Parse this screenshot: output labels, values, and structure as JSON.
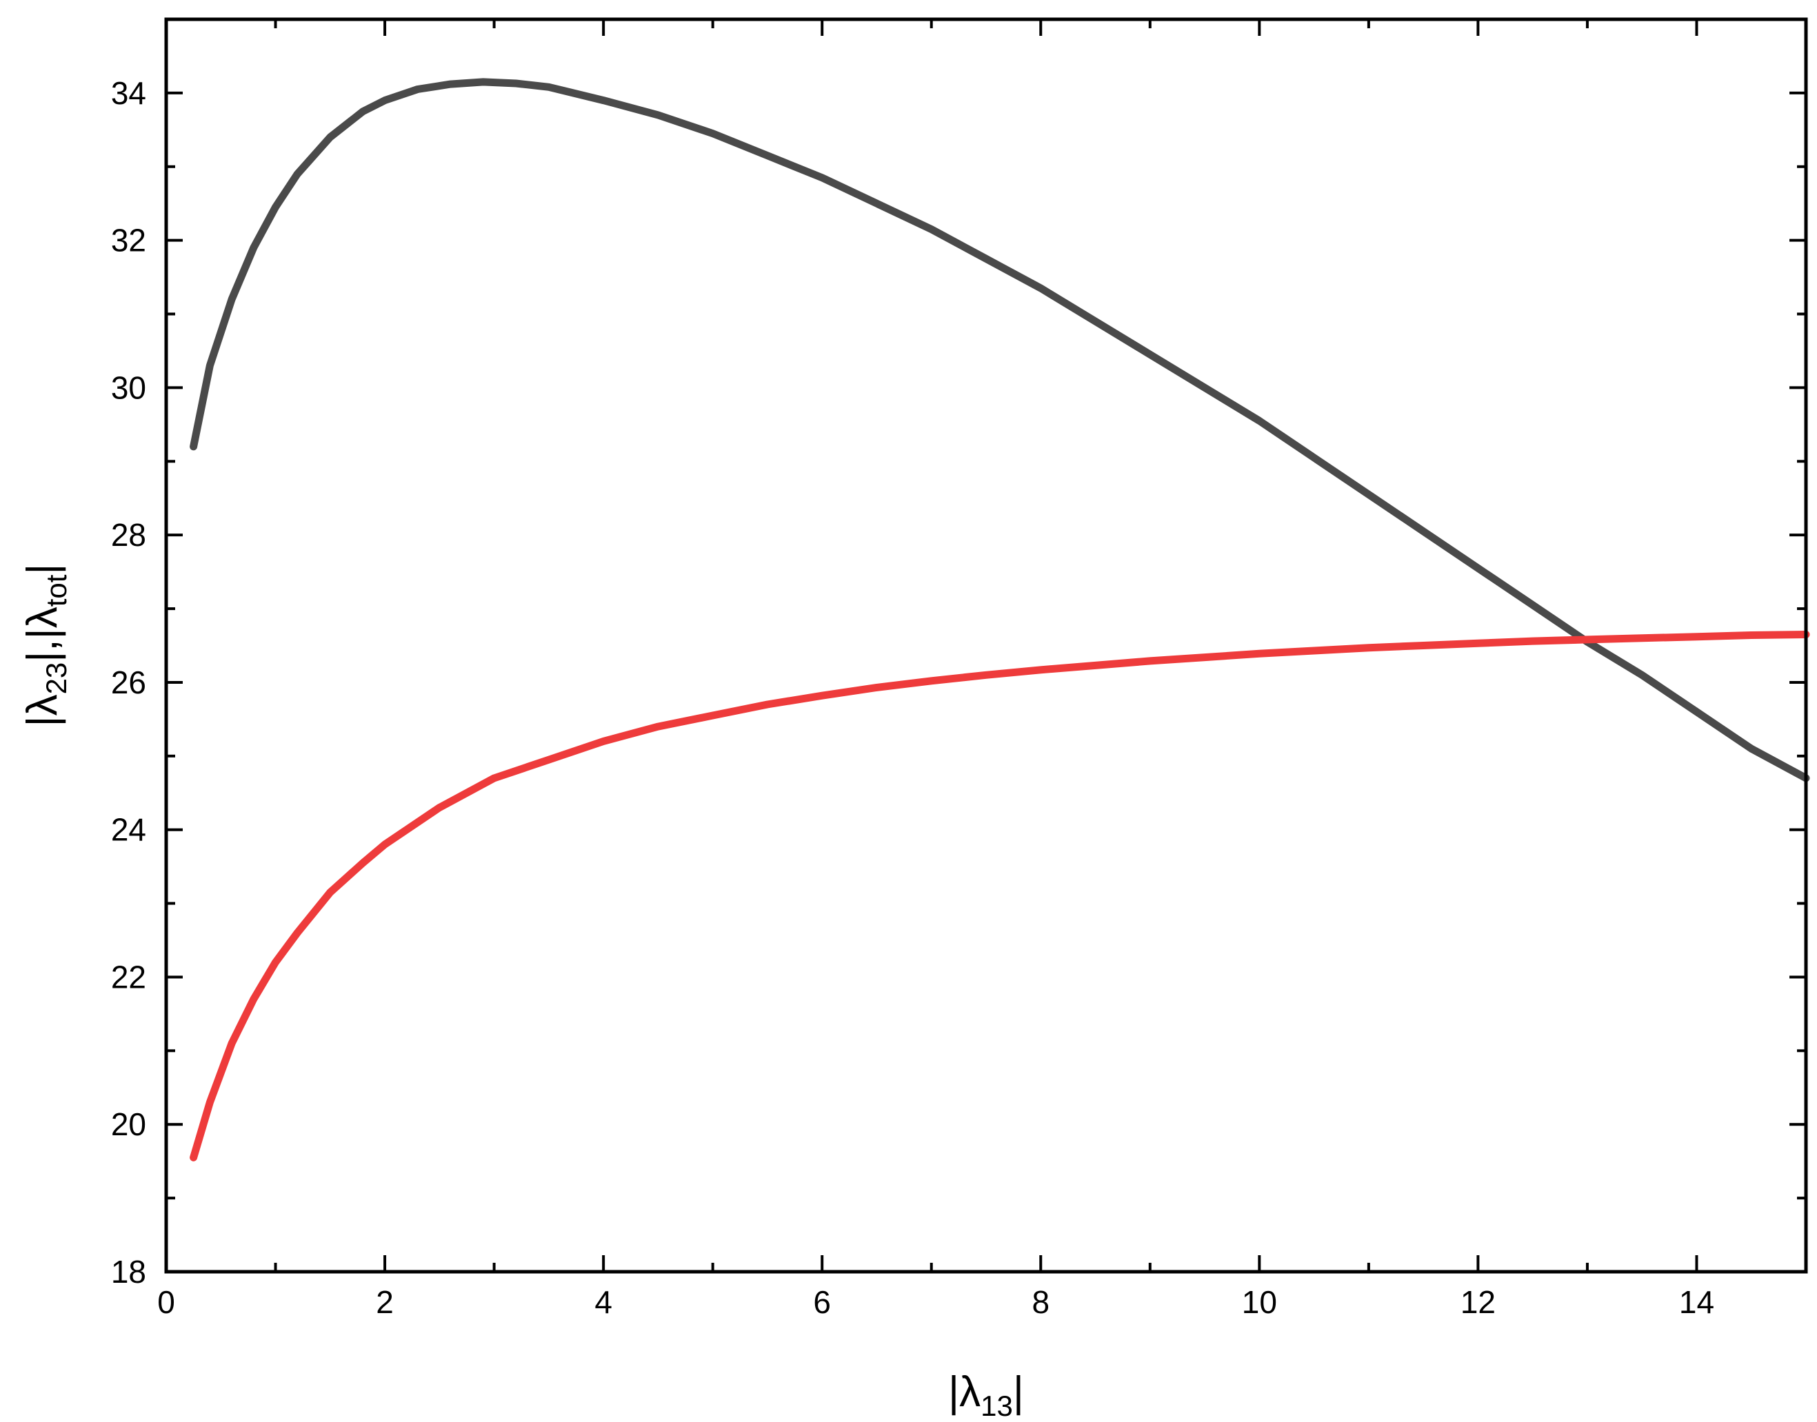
{
  "chart_data": {
    "type": "line",
    "title": "",
    "xlabel": {
      "prefix": "|λ",
      "sub": "13",
      "suffix": "|"
    },
    "ylabel": {
      "part1": "|λ",
      "sub1": "23",
      "part2": "|,|λ",
      "sub2": "tot",
      "part3": "|"
    },
    "xlim": [
      0,
      15
    ],
    "ylim": [
      18,
      35
    ],
    "x_ticks": [
      0,
      2,
      4,
      6,
      8,
      10,
      12,
      14
    ],
    "x_tick_labels": [
      "0",
      "2",
      "4",
      "6",
      "8",
      "10",
      "12",
      "14"
    ],
    "y_ticks": [
      18,
      20,
      22,
      24,
      26,
      28,
      30,
      32,
      34
    ],
    "y_tick_labels": [
      "18",
      "20",
      "22",
      "24",
      "26",
      "28",
      "30",
      "32",
      "34"
    ],
    "grid": false,
    "legend": "none",
    "series": [
      {
        "color": "#4a4a4a",
        "x": [
          0.25,
          0.4,
          0.6,
          0.8,
          1.0,
          1.2,
          1.5,
          1.8,
          2.0,
          2.3,
          2.6,
          2.9,
          3.2,
          3.5,
          4.0,
          4.5,
          5.0,
          5.5,
          6.0,
          6.5,
          7.0,
          7.5,
          8.0,
          8.5,
          9.0,
          9.5,
          10.0,
          10.5,
          11.0,
          11.5,
          12.0,
          12.5,
          13.0,
          13.5,
          14.0,
          14.5,
          15.0
        ],
        "y": [
          29.2,
          30.3,
          31.2,
          31.9,
          32.45,
          32.9,
          33.4,
          33.75,
          33.9,
          34.05,
          34.12,
          34.15,
          34.13,
          34.08,
          33.9,
          33.7,
          33.45,
          33.15,
          32.85,
          32.5,
          32.15,
          31.75,
          31.35,
          30.9,
          30.45,
          30.0,
          29.55,
          29.05,
          28.55,
          28.05,
          27.55,
          27.05,
          26.55,
          26.1,
          25.6,
          25.1,
          24.7
        ]
      },
      {
        "color": "#ee3b3b",
        "x": [
          0.25,
          0.4,
          0.6,
          0.8,
          1.0,
          1.2,
          1.5,
          1.8,
          2.0,
          2.5,
          3.0,
          3.5,
          4.0,
          4.5,
          5.0,
          5.5,
          6.0,
          6.5,
          7.0,
          7.5,
          8.0,
          8.5,
          9.0,
          9.5,
          10.0,
          10.5,
          11.0,
          11.5,
          12.0,
          12.5,
          13.0,
          13.5,
          14.0,
          14.5,
          15.0
        ],
        "y": [
          19.55,
          20.3,
          21.1,
          21.7,
          22.2,
          22.6,
          23.15,
          23.55,
          23.8,
          24.3,
          24.7,
          24.95,
          25.2,
          25.4,
          25.55,
          25.7,
          25.82,
          25.93,
          26.02,
          26.1,
          26.17,
          26.23,
          26.29,
          26.34,
          26.39,
          26.43,
          26.47,
          26.5,
          26.53,
          26.56,
          26.58,
          26.6,
          26.62,
          26.64,
          26.65
        ]
      }
    ]
  }
}
